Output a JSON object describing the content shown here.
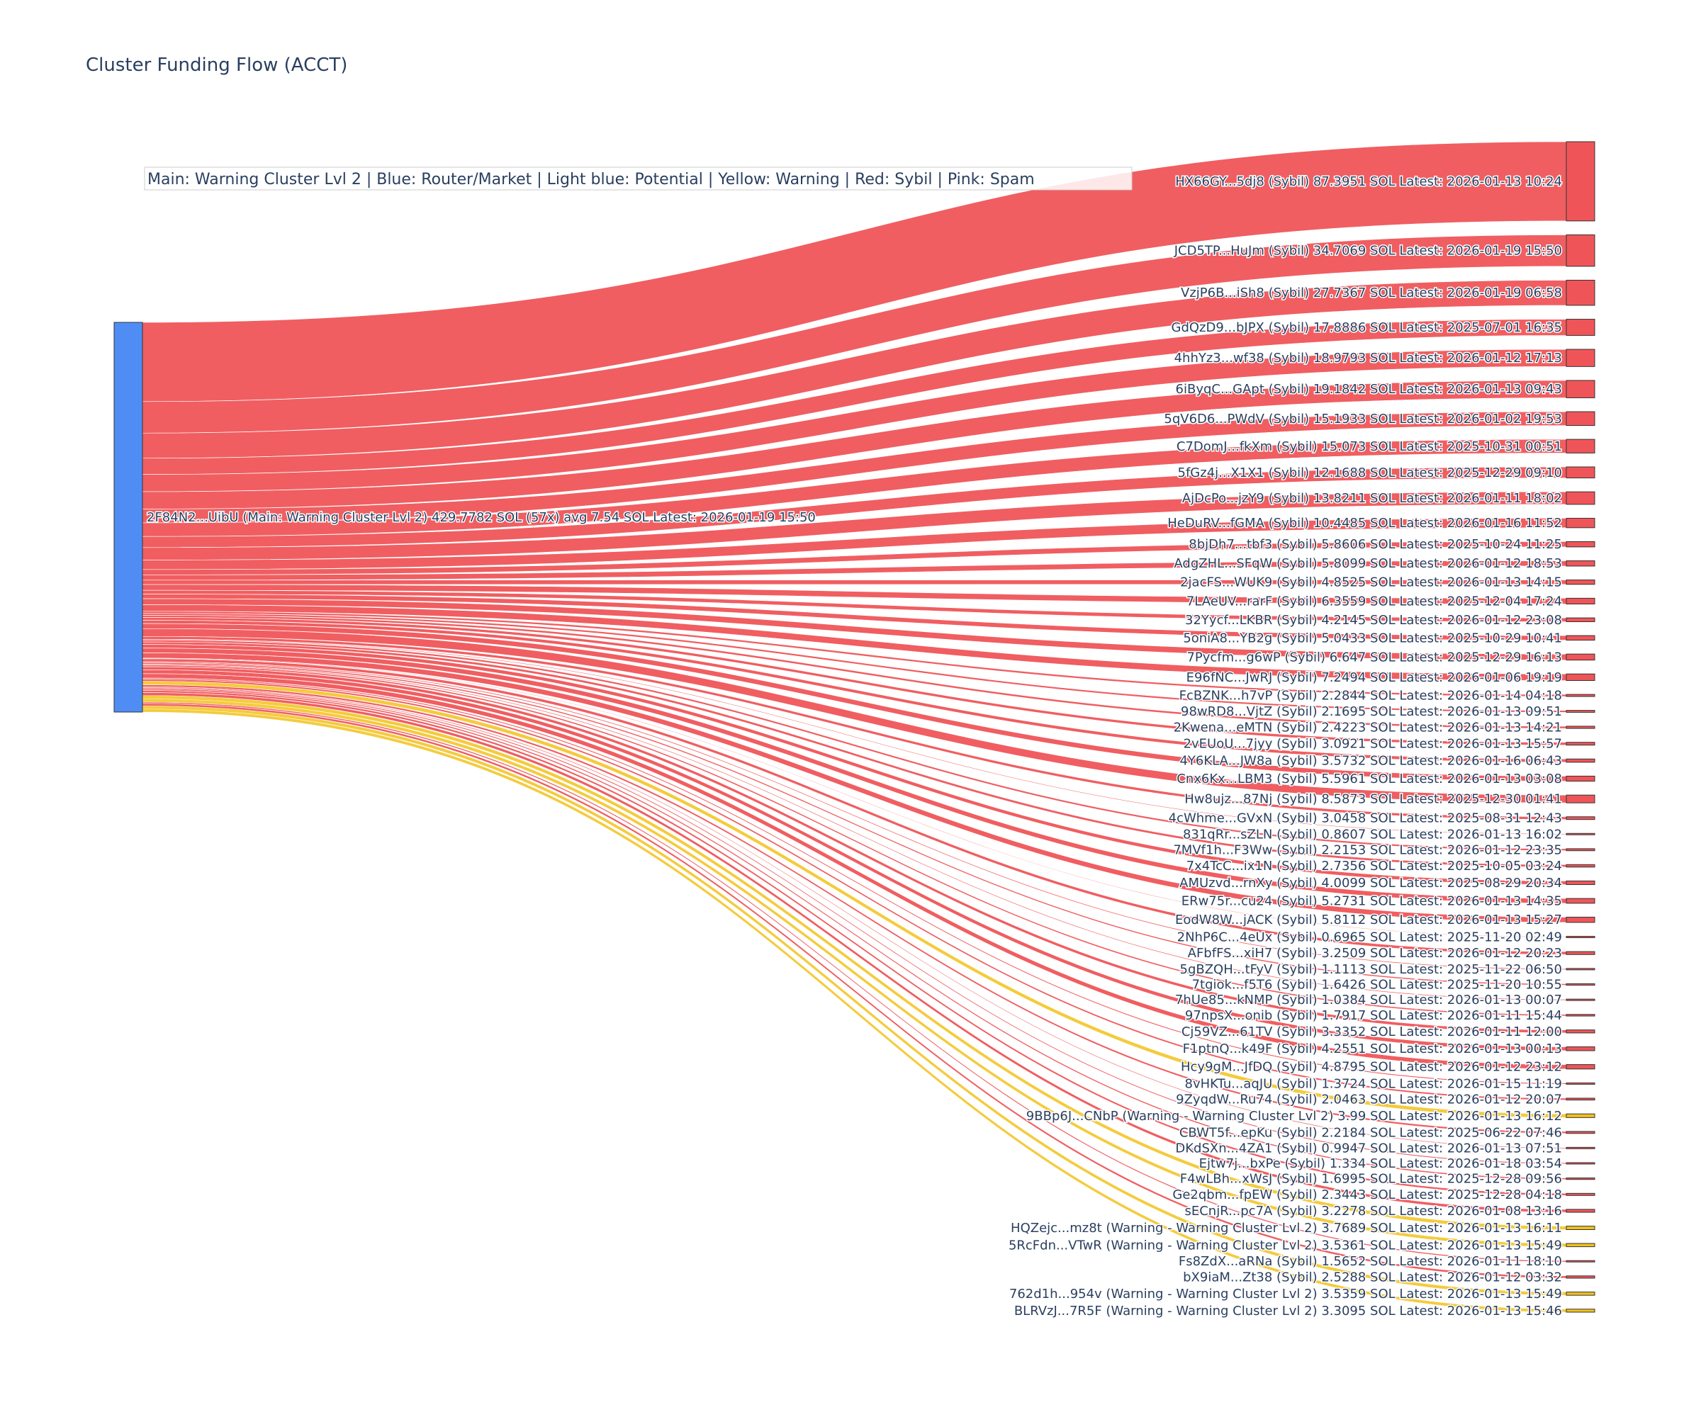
{
  "chart_data": {
    "type": "sankey",
    "title": "Cluster Funding Flow (ACCT)",
    "legend_text": "Main: Warning Cluster Lvl 2  |  Blue: Router/Market | Light blue: Potential | Yellow: Warning | Red: Sybil | Pink: Spam",
    "colors": {
      "source": "#4f8df5",
      "sybil": "#ef5558",
      "warning": "#f2c21b",
      "node_border": "#333333"
    },
    "source": {
      "label": "2F84N2...UibU (Main: Warning Cluster Lvl 2) 429.7782 SOL (57x) avg 7.54 SOL Latest: 2026-01-19 15:50",
      "value": 429.7782
    },
    "targets": [
      {
        "label": "HX66GY...5dj8 (Sybil) 87.3951 SOL Latest: 2026-01-13 10:24",
        "value": 87.3951,
        "type": "sybil"
      },
      {
        "label": "JCD5TP...HuJm (Sybil) 34.7069 SOL Latest: 2026-01-19 15:50",
        "value": 34.7069,
        "type": "sybil"
      },
      {
        "label": "VzjP6B...iSh8 (Sybil) 27.7367 SOL Latest: 2026-01-19 06:58",
        "value": 27.7367,
        "type": "sybil"
      },
      {
        "label": "GdQzD9...bJPX (Sybil) 17.8886 SOL Latest: 2025-07-01 16:35",
        "value": 17.8886,
        "type": "sybil"
      },
      {
        "label": "4hhYz3...wf38 (Sybil) 18.9793 SOL Latest: 2026-01-12 17:13",
        "value": 18.9793,
        "type": "sybil"
      },
      {
        "label": "6iByqC...GApt (Sybil) 19.1842 SOL Latest: 2026-01-13 09:43",
        "value": 19.1842,
        "type": "sybil"
      },
      {
        "label": "5qV6D6...PWdV (Sybil) 15.1933 SOL Latest: 2026-01-02 19:53",
        "value": 15.1933,
        "type": "sybil"
      },
      {
        "label": "C7DomJ...fkXm (Sybil) 15.073 SOL Latest: 2025-10-31 00:51",
        "value": 15.073,
        "type": "sybil"
      },
      {
        "label": "5fGz4j...X1X1 (Sybil) 12.1688 SOL Latest: 2025-12-29 09:10",
        "value": 12.1688,
        "type": "sybil"
      },
      {
        "label": "AjDcPo...jzY9 (Sybil) 13.8211 SOL Latest: 2026-01-11 18:02",
        "value": 13.8211,
        "type": "sybil"
      },
      {
        "label": "HeDuRV...fGMA (Sybil) 10.4485 SOL Latest: 2026-01-16 11:52",
        "value": 10.4485,
        "type": "sybil"
      },
      {
        "label": "8bjDh7...tbf3 (Sybil) 5.8606 SOL Latest: 2025-10-24 11:25",
        "value": 5.8606,
        "type": "sybil"
      },
      {
        "label": "AdgZHL...SFqW (Sybil) 5.8099 SOL Latest: 2026-01-12 18:53",
        "value": 5.8099,
        "type": "sybil"
      },
      {
        "label": "2jacFS...WUK9 (Sybil) 4.8525 SOL Latest: 2026-01-13 14:15",
        "value": 4.8525,
        "type": "sybil"
      },
      {
        "label": "7LAeUV...rarF (Sybil) 6.3559 SOL Latest: 2025-12-04 17:24",
        "value": 6.3559,
        "type": "sybil"
      },
      {
        "label": "32Yycf...LKBR (Sybil) 4.2145 SOL Latest: 2026-01-12 23:08",
        "value": 4.2145,
        "type": "sybil"
      },
      {
        "label": "5oniA8...YB2g (Sybil) 5.0433 SOL Latest: 2025-10-29 10:41",
        "value": 5.0433,
        "type": "sybil"
      },
      {
        "label": "7Pycfm...g6wP (Sybil) 6.647 SOL Latest: 2025-12-29 16:13",
        "value": 6.647,
        "type": "sybil"
      },
      {
        "label": "E96fNC...JwRJ (Sybil) 7.2494 SOL Latest: 2026-01-06 19:19",
        "value": 7.2494,
        "type": "sybil"
      },
      {
        "label": "FcBZNK...h7vP (Sybil) 2.2844 SOL Latest: 2026-01-14 04:18",
        "value": 2.2844,
        "type": "sybil"
      },
      {
        "label": "98wRD8...VjtZ (Sybil) 2.1695 SOL Latest: 2026-01-13 09:51",
        "value": 2.1695,
        "type": "sybil"
      },
      {
        "label": "2Kwena...eMTN (Sybil) 2.4223 SOL Latest: 2026-01-13 14:21",
        "value": 2.4223,
        "type": "sybil"
      },
      {
        "label": "2vEUoU...7jyy (Sybil) 3.0921 SOL Latest: 2026-01-13 15:57",
        "value": 3.0921,
        "type": "sybil"
      },
      {
        "label": "4Y6KLA...JW8a (Sybil) 3.5732 SOL Latest: 2026-01-16 06:43",
        "value": 3.5732,
        "type": "sybil"
      },
      {
        "label": "Cnx6Kx...LBM3 (Sybil) 5.5961 SOL Latest: 2026-01-13 03:08",
        "value": 5.5961,
        "type": "sybil"
      },
      {
        "label": "Hw8ujz...87Nj (Sybil) 8.5873 SOL Latest: 2025-12-30 01:41",
        "value": 8.5873,
        "type": "sybil"
      },
      {
        "label": "4cWhme...GVxN (Sybil) 3.0458 SOL Latest: 2025-08-31 12:43",
        "value": 3.0458,
        "type": "sybil"
      },
      {
        "label": "831qRr...sZLN (Sybil) 0.8607 SOL Latest: 2026-01-13 16:02",
        "value": 0.8607,
        "type": "sybil"
      },
      {
        "label": "7MVf1h...F3Ww (Sybil) 2.2153 SOL Latest: 2026-01-12 23:35",
        "value": 2.2153,
        "type": "sybil"
      },
      {
        "label": "7x4TcC...ix1N (Sybil) 2.7356 SOL Latest: 2025-10-05 03:24",
        "value": 2.7356,
        "type": "sybil"
      },
      {
        "label": "AMUzvd...rnXy (Sybil) 4.0099 SOL Latest: 2025-08-29 20:34",
        "value": 4.0099,
        "type": "sybil"
      },
      {
        "label": "ERw75r...cu24 (Sybil) 5.2731 SOL Latest: 2026-01-13 14:35",
        "value": 5.2731,
        "type": "sybil"
      },
      {
        "label": "EodW8W...jACK (Sybil) 5.8112 SOL Latest: 2026-01-13 15:27",
        "value": 5.8112,
        "type": "sybil"
      },
      {
        "label": "2NhP6C...4eUx (Sybil) 0.6965 SOL Latest: 2025-11-20 02:49",
        "value": 0.6965,
        "type": "sybil"
      },
      {
        "label": "AFbfFS...xiH7 (Sybil) 3.2509 SOL Latest: 2026-01-12 20:23",
        "value": 3.2509,
        "type": "sybil"
      },
      {
        "label": "5gBZQH...tFyV (Sybil) 1.1113 SOL Latest: 2025-11-22 06:50",
        "value": 1.1113,
        "type": "sybil"
      },
      {
        "label": "7tgiok...f5T6 (Sybil) 1.6426 SOL Latest: 2025-11-20 10:55",
        "value": 1.6426,
        "type": "sybil"
      },
      {
        "label": "7hUe85...kNMP (Sybil) 1.0384 SOL Latest: 2026-01-13 00:07",
        "value": 1.0384,
        "type": "sybil"
      },
      {
        "label": "97npsX...onib (Sybil) 1.7917 SOL Latest: 2026-01-11 15:44",
        "value": 1.7917,
        "type": "sybil"
      },
      {
        "label": "Cj59VZ...61TV (Sybil) 3.3352 SOL Latest: 2026-01-11 12:00",
        "value": 3.3352,
        "type": "sybil"
      },
      {
        "label": "F1ptnQ...k49F (Sybil) 4.2551 SOL Latest: 2026-01-13 00:13",
        "value": 4.2551,
        "type": "sybil"
      },
      {
        "label": "Hcy9gM...JfDQ (Sybil) 4.8795 SOL Latest: 2026-01-12 23:12",
        "value": 4.8795,
        "type": "sybil"
      },
      {
        "label": "8vHKTu...aqJU (Sybil) 1.3724 SOL Latest: 2026-01-15 11:19",
        "value": 1.3724,
        "type": "sybil"
      },
      {
        "label": "9ZyqdW...Ru74 (Sybil) 2.0463 SOL Latest: 2026-01-12 20:07",
        "value": 2.0463,
        "type": "sybil"
      },
      {
        "label": "9BBp6J...CNbP (Warning - Warning Cluster Lvl 2) 3.99 SOL Latest: 2026-01-13 16:12",
        "value": 3.99,
        "type": "warning"
      },
      {
        "label": "CBWT5f...epKu (Sybil) 2.2184 SOL Latest: 2025-06-22 07:46",
        "value": 2.2184,
        "type": "sybil"
      },
      {
        "label": "DKdSXn...4ZA1 (Sybil) 0.9947 SOL Latest: 2026-01-13 07:51",
        "value": 0.9947,
        "type": "sybil"
      },
      {
        "label": "Ejtw7j...bxPe (Sybil) 1.334 SOL Latest: 2026-01-18 03:54",
        "value": 1.334,
        "type": "sybil"
      },
      {
        "label": "F4wLBh...xWsJ (Sybil) 1.6995 SOL Latest: 2025-12-28 09:56",
        "value": 1.6995,
        "type": "sybil"
      },
      {
        "label": "Ge2qbm...fpEW (Sybil) 2.3443 SOL Latest: 2025-12-28 04:18",
        "value": 2.3443,
        "type": "sybil"
      },
      {
        "label": "sECnjR...pc7A (Sybil) 3.2278 SOL Latest: 2026-01-08 13:16",
        "value": 3.2278,
        "type": "sybil"
      },
      {
        "label": "HQZejc...mz8t (Warning - Warning Cluster Lvl 2) 3.7689 SOL Latest: 2026-01-13 16:11",
        "value": 3.7689,
        "type": "warning"
      },
      {
        "label": "5RcFdn...VTwR (Warning - Warning Cluster Lvl 2) 3.5361 SOL Latest: 2026-01-13 15:49",
        "value": 3.5361,
        "type": "warning"
      },
      {
        "label": "Fs8ZdX...aRNa (Sybil) 1.5652 SOL Latest: 2026-01-11 18:10",
        "value": 1.5652,
        "type": "sybil"
      },
      {
        "label": "bX9iaM...Zt38 (Sybil) 2.5288 SOL Latest: 2026-01-12 03:32",
        "value": 2.5288,
        "type": "sybil"
      },
      {
        "label": "762d1h...954v (Warning - Warning Cluster Lvl 2) 3.5359 SOL Latest: 2026-01-13 15:49",
        "value": 3.5359,
        "type": "warning"
      },
      {
        "label": "BLRVzJ...7R5F (Warning - Warning Cluster Lvl 2) 3.3095 SOL Latest: 2026-01-13 15:46",
        "value": 3.3095,
        "type": "warning"
      }
    ]
  }
}
